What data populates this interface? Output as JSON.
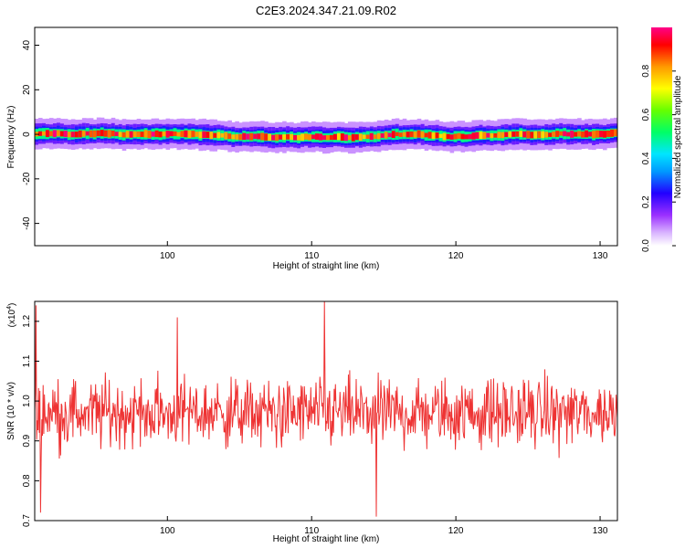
{
  "title": "C2E3.2024.347.21.09.R02",
  "chart_data": [
    {
      "type": "heatmap",
      "name": "spectrogram",
      "xlabel": "Height of straight line (km)",
      "ylabel": "Frequency (Hz)",
      "xlim": [
        90.8,
        131.2
      ],
      "ylim": [
        -50,
        48
      ],
      "xticks": [
        100,
        110,
        120,
        130
      ],
      "yticks": [
        40,
        20,
        0,
        -20,
        -40
      ],
      "ytick_labels": [
        "40",
        "20",
        "0",
        "-20",
        "-40"
      ],
      "band_center_hz": 0,
      "band_halfwidth_hz": 2,
      "colorbar": {
        "label": "Normalized spectral amplitude",
        "range": [
          0.0,
          1.0
        ],
        "ticks": [
          0.0,
          0.2,
          0.4,
          0.6,
          0.8
        ],
        "tick_labels": [
          "0.0",
          "0.2",
          "0.4",
          "0.6",
          "0.8"
        ]
      }
    },
    {
      "type": "line",
      "name": "snr",
      "xlabel": "Height of straight line (km)",
      "ylabel": "SNR (10 * v/v)",
      "exponent_label": "(x10",
      "exponent_power": "4",
      "exponent_close": ")",
      "xlim": [
        90.8,
        131.2
      ],
      "ylim": [
        0.7,
        1.25
      ],
      "xticks": [
        100,
        110,
        120,
        130
      ],
      "yticks": [
        0.7,
        0.8,
        0.9,
        1.0,
        1.1,
        1.2
      ],
      "ytick_labels": [
        "0.7",
        "0.8",
        "0.9",
        "1.0",
        "1.1",
        "1.2"
      ],
      "color": "#ee3333",
      "mean": 0.97,
      "spread": 0.06,
      "notable_points": [
        {
          "x": 90.9,
          "y": 1.24
        },
        {
          "x": 91.2,
          "y": 0.72
        },
        {
          "x": 100.7,
          "y": 1.21
        },
        {
          "x": 110.9,
          "y": 1.25
        },
        {
          "x": 114.5,
          "y": 0.71
        }
      ]
    }
  ]
}
